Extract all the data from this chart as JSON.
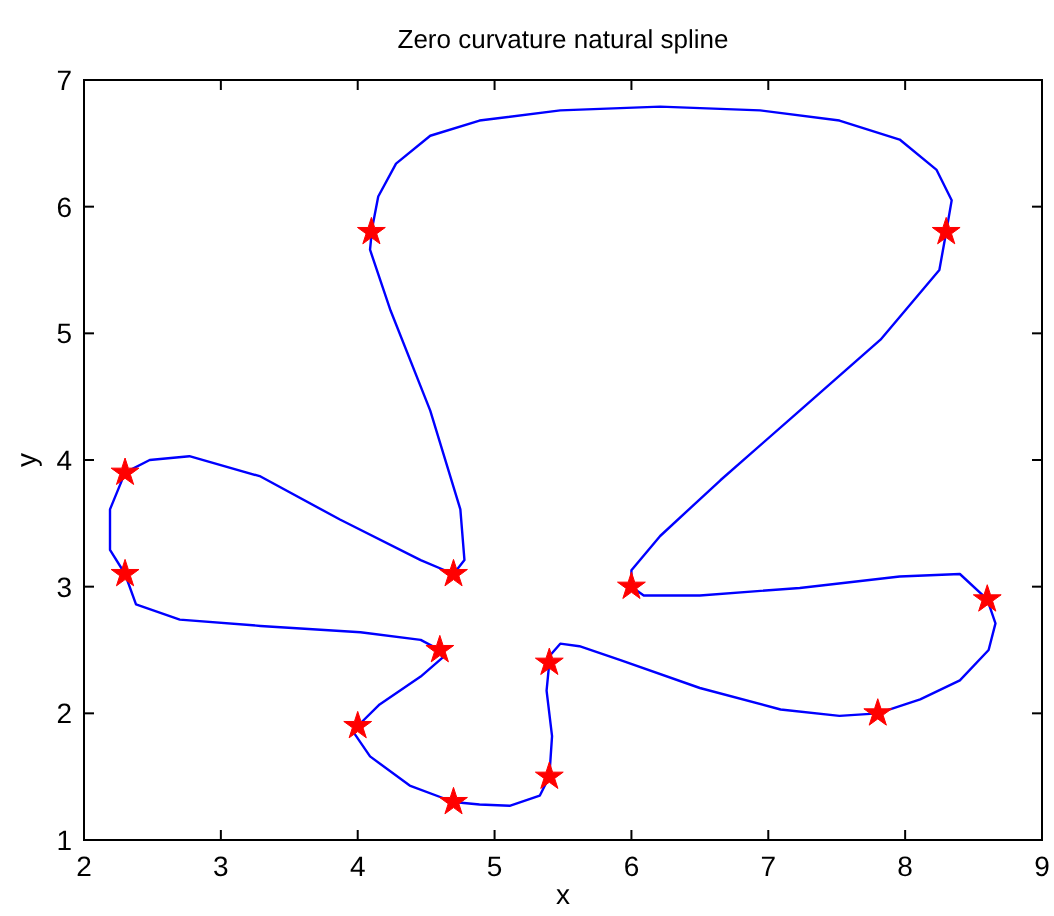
{
  "chart_data": {
    "type": "line",
    "title": "Zero curvature natural spline",
    "xlabel": "x",
    "ylabel": "y",
    "xlim": [
      2,
      9
    ],
    "ylim": [
      1,
      7
    ],
    "xticks": [
      2,
      3,
      4,
      5,
      6,
      7,
      8,
      9
    ],
    "yticks": [
      1,
      2,
      3,
      4,
      5,
      6,
      7
    ],
    "grid": false,
    "series": [
      {
        "color": "#0000ff",
        "line_style": "solid",
        "x": [
          4.1,
          4.15,
          4.28,
          4.53,
          4.89,
          5.48,
          6.21,
          6.94,
          7.52,
          7.96,
          8.23,
          8.34,
          8.3,
          8.25,
          7.82,
          7.23,
          6.65,
          6.21,
          6.0,
          6.0,
          6.09,
          6.5,
          7.23,
          7.96,
          8.4,
          8.6,
          8.66,
          8.61,
          8.4,
          8.11,
          7.8,
          7.52,
          7.09,
          6.5,
          5.92,
          5.62,
          5.48,
          5.4,
          5.4,
          5.38,
          5.42,
          5.4,
          5.33,
          5.11,
          4.89,
          4.7,
          4.38,
          4.09,
          3.97,
          4.0,
          4.16,
          4.46,
          4.62,
          4.6,
          4.46,
          4.02,
          3.29,
          2.7,
          2.38,
          2.3,
          2.19,
          2.19,
          2.3,
          2.48,
          2.77,
          3.29,
          3.87,
          4.46,
          4.7,
          4.78,
          4.75,
          4.53,
          4.24,
          4.09,
          4.1
        ],
        "values": [
          5.8,
          6.08,
          6.34,
          6.56,
          6.68,
          6.76,
          6.79,
          6.76,
          6.68,
          6.53,
          6.29,
          6.05,
          5.8,
          5.5,
          4.95,
          4.39,
          3.84,
          3.4,
          3.13,
          3.0,
          2.93,
          2.93,
          2.99,
          3.08,
          3.1,
          2.9,
          2.71,
          2.5,
          2.26,
          2.11,
          2.0,
          1.98,
          2.03,
          2.2,
          2.42,
          2.53,
          2.55,
          2.45,
          2.4,
          2.18,
          1.82,
          1.5,
          1.35,
          1.27,
          1.28,
          1.3,
          1.43,
          1.66,
          1.85,
          1.9,
          2.07,
          2.29,
          2.44,
          2.5,
          2.58,
          2.64,
          2.69,
          2.74,
          2.86,
          3.1,
          3.29,
          3.61,
          3.9,
          4.0,
          4.03,
          3.87,
          3.53,
          3.21,
          3.1,
          3.21,
          3.61,
          4.39,
          5.18,
          5.66,
          5.77
        ]
      },
      {
        "type": "scatter",
        "color": "#ff0000",
        "marker": "star",
        "x": [
          4.1,
          8.3,
          6,
          8.6,
          7.8,
          5.4,
          5.4,
          4.7,
          4,
          4.6,
          2.3,
          2.3,
          4.7
        ],
        "values": [
          5.8,
          5.8,
          3,
          2.9,
          2,
          2.4,
          1.5,
          1.3,
          1.9,
          2.5,
          3.1,
          3.9,
          3.1
        ]
      }
    ]
  }
}
